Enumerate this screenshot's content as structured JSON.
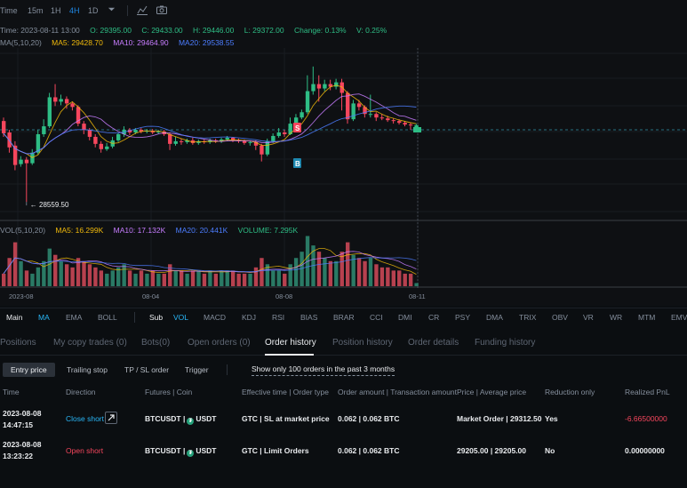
{
  "toolbar": {
    "items": [
      "Time",
      "15m",
      "1H",
      "4H",
      "1D"
    ],
    "active": "4H"
  },
  "info": {
    "time": "Time: 2023-08-11 13:00",
    "open": "O: 29395.00",
    "close": "C: 29433.00",
    "high": "H: 29446.00",
    "low": "L: 29372.00",
    "change": "Change: 0.13%",
    "volume": "V: 0.25%"
  },
  "ma": {
    "label": "MA(5,10,20)",
    "ma5": "MA5: 29428.70",
    "ma10": "MA10: 29464.90",
    "ma20": "MA20: 29538.55"
  },
  "chart_data": {
    "type": "candlestick",
    "low_label": "28559.50",
    "markers": [
      "S",
      "B"
    ],
    "x_ticks": [
      "2023-08",
      "08-04",
      "08-08",
      "08-11"
    ],
    "candles": [
      {
        "o": 29480,
        "c": 29340,
        "h": 29520,
        "l": 29300
      },
      {
        "o": 29350,
        "c": 29180,
        "h": 29380,
        "l": 29120
      },
      {
        "o": 29200,
        "c": 28980,
        "h": 29250,
        "l": 28920
      },
      {
        "o": 28990,
        "c": 29040,
        "h": 29080,
        "l": 28960
      },
      {
        "o": 29040,
        "c": 29000,
        "h": 29070,
        "l": 28560
      },
      {
        "o": 29000,
        "c": 29120,
        "h": 29160,
        "l": 28980
      },
      {
        "o": 29120,
        "c": 29330,
        "h": 29380,
        "l": 29100
      },
      {
        "o": 29330,
        "c": 29420,
        "h": 29500,
        "l": 29300
      },
      {
        "o": 29420,
        "c": 29750,
        "h": 29800,
        "l": 29400
      },
      {
        "o": 29750,
        "c": 29700,
        "h": 29900,
        "l": 29650
      },
      {
        "o": 29700,
        "c": 29730,
        "h": 29780,
        "l": 29660
      },
      {
        "o": 29730,
        "c": 29680,
        "h": 29760,
        "l": 29620
      },
      {
        "o": 29680,
        "c": 29640,
        "h": 29700,
        "l": 29600
      },
      {
        "o": 29640,
        "c": 29450,
        "h": 29660,
        "l": 29420
      },
      {
        "o": 29450,
        "c": 29380,
        "h": 29480,
        "l": 29330
      },
      {
        "o": 29380,
        "c": 29300,
        "h": 29400,
        "l": 29260
      },
      {
        "o": 29300,
        "c": 29220,
        "h": 29330,
        "l": 29180
      },
      {
        "o": 29220,
        "c": 29160,
        "h": 29250,
        "l": 29120
      },
      {
        "o": 29160,
        "c": 29190,
        "h": 29230,
        "l": 29140
      },
      {
        "o": 29190,
        "c": 29260,
        "h": 29300,
        "l": 29170
      },
      {
        "o": 29260,
        "c": 29330,
        "h": 29350,
        "l": 29240
      },
      {
        "o": 29330,
        "c": 29380,
        "h": 29420,
        "l": 29300
      },
      {
        "o": 29380,
        "c": 29350,
        "h": 29400,
        "l": 29320
      },
      {
        "o": 29350,
        "c": 29380,
        "h": 29400,
        "l": 29330
      },
      {
        "o": 29380,
        "c": 29360,
        "h": 29400,
        "l": 29340
      },
      {
        "o": 29360,
        "c": 29370,
        "h": 29390,
        "l": 29340
      },
      {
        "o": 29370,
        "c": 29350,
        "h": 29390,
        "l": 29330
      },
      {
        "o": 29350,
        "c": 29360,
        "h": 29380,
        "l": 29330
      },
      {
        "o": 29360,
        "c": 29330,
        "h": 29380,
        "l": 29310
      },
      {
        "o": 29330,
        "c": 29220,
        "h": 29350,
        "l": 29150
      },
      {
        "o": 29220,
        "c": 29250,
        "h": 29300,
        "l": 29200
      },
      {
        "o": 29250,
        "c": 29240,
        "h": 29280,
        "l": 29210
      },
      {
        "o": 29240,
        "c": 29260,
        "h": 29280,
        "l": 29220
      },
      {
        "o": 29260,
        "c": 29230,
        "h": 29290,
        "l": 29210
      },
      {
        "o": 29230,
        "c": 29250,
        "h": 29270,
        "l": 29210
      },
      {
        "o": 29250,
        "c": 29240,
        "h": 29270,
        "l": 29220
      },
      {
        "o": 29240,
        "c": 29260,
        "h": 29280,
        "l": 29220
      },
      {
        "o": 29260,
        "c": 29250,
        "h": 29280,
        "l": 29230
      },
      {
        "o": 29250,
        "c": 29270,
        "h": 29290,
        "l": 29230
      },
      {
        "o": 29270,
        "c": 29290,
        "h": 29310,
        "l": 29250
      },
      {
        "o": 29290,
        "c": 29260,
        "h": 29300,
        "l": 29240
      },
      {
        "o": 29260,
        "c": 29250,
        "h": 29280,
        "l": 29230
      },
      {
        "o": 29250,
        "c": 29230,
        "h": 29270,
        "l": 29210
      },
      {
        "o": 29230,
        "c": 29240,
        "h": 29260,
        "l": 29200
      },
      {
        "o": 29240,
        "c": 29200,
        "h": 29260,
        "l": 29150
      },
      {
        "o": 29200,
        "c": 29100,
        "h": 29220,
        "l": 29020
      },
      {
        "o": 29100,
        "c": 29250,
        "h": 29280,
        "l": 29080
      },
      {
        "o": 29250,
        "c": 29310,
        "h": 29340,
        "l": 29230
      },
      {
        "o": 29310,
        "c": 29350,
        "h": 29400,
        "l": 29290
      },
      {
        "o": 29350,
        "c": 29330,
        "h": 29380,
        "l": 29300
      },
      {
        "o": 29330,
        "c": 29450,
        "h": 29520,
        "l": 29320
      },
      {
        "o": 29450,
        "c": 29520,
        "h": 29560,
        "l": 29430
      },
      {
        "o": 29520,
        "c": 29580,
        "h": 29610,
        "l": 29500
      },
      {
        "o": 29580,
        "c": 29820,
        "h": 30000,
        "l": 29560
      },
      {
        "o": 29820,
        "c": 29900,
        "h": 30100,
        "l": 29780
      },
      {
        "o": 29900,
        "c": 29850,
        "h": 30000,
        "l": 29700
      },
      {
        "o": 29850,
        "c": 29900,
        "h": 29950,
        "l": 29820
      },
      {
        "o": 29900,
        "c": 29870,
        "h": 29950,
        "l": 29830
      },
      {
        "o": 29870,
        "c": 29920,
        "h": 29960,
        "l": 29840
      },
      {
        "o": 29920,
        "c": 29800,
        "h": 29960,
        "l": 29600
      },
      {
        "o": 29800,
        "c": 29500,
        "h": 29820,
        "l": 29450
      },
      {
        "o": 29500,
        "c": 29680,
        "h": 29720,
        "l": 29480
      },
      {
        "o": 29680,
        "c": 29640,
        "h": 29720,
        "l": 29600
      },
      {
        "o": 29640,
        "c": 29560,
        "h": 29660,
        "l": 29520
      },
      {
        "o": 29560,
        "c": 29560,
        "h": 29780,
        "l": 29520
      },
      {
        "o": 29560,
        "c": 29520,
        "h": 29580,
        "l": 29480
      },
      {
        "o": 29520,
        "c": 29510,
        "h": 29560,
        "l": 29490
      },
      {
        "o": 29510,
        "c": 29490,
        "h": 29540,
        "l": 29470
      },
      {
        "o": 29490,
        "c": 29480,
        "h": 29510,
        "l": 29450
      },
      {
        "o": 29480,
        "c": 29460,
        "h": 29500,
        "l": 29440
      },
      {
        "o": 29460,
        "c": 29440,
        "h": 29480,
        "l": 29420
      },
      {
        "o": 29440,
        "c": 29435,
        "h": 29460,
        "l": 29380
      },
      {
        "o": 29395,
        "c": 29433,
        "h": 29446,
        "l": 29372
      }
    ],
    "volumes": [
      4,
      9,
      14,
      8,
      5,
      4,
      6,
      8,
      12,
      10,
      8,
      7,
      6,
      9,
      8,
      7,
      6,
      5,
      4,
      5,
      6,
      7,
      5,
      4,
      5,
      4,
      5,
      4,
      4,
      7,
      5,
      5,
      4,
      5,
      5,
      4,
      5,
      4,
      5,
      5,
      5,
      4,
      4,
      4,
      6,
      9,
      7,
      5,
      5,
      4,
      7,
      9,
      11,
      16,
      13,
      11,
      9,
      8,
      8,
      11,
      14,
      10,
      9,
      8,
      9,
      7,
      6,
      6,
      5,
      5,
      4,
      4,
      1
    ]
  },
  "vol": {
    "label": "VOL(5,10,20)",
    "ma5": "MA5: 16.299K",
    "ma10": "MA10: 17.132K",
    "ma20": "MA20: 20.441K",
    "volume": "VOLUME: 7.295K"
  },
  "indicators": {
    "main_label": "Main",
    "main_items": [
      "MA",
      "EMA",
      "BOLL"
    ],
    "sub_label": "Sub",
    "sub_items": [
      "VOL",
      "MACD",
      "KDJ",
      "RSI",
      "BIAS",
      "BRAR",
      "CCI",
      "DMI",
      "CR",
      "PSY",
      "DMA",
      "TRIX",
      "OBV",
      "VR",
      "WR",
      "MTM",
      "EMV"
    ]
  },
  "tabs": [
    "Positions",
    "My copy trades (0)",
    "Bots(0)",
    "Open orders (0)",
    "Order history",
    "Position history",
    "Order details",
    "Funding history"
  ],
  "subtabs": [
    "Entry price",
    "Trailing stop",
    "TP / SL order",
    "Trigger"
  ],
  "notice": "Show only 100 orders in the past 3 months",
  "table": {
    "headers": [
      "Time",
      "Direction",
      "Futures | Coin",
      "Effective time | Order type",
      "Order amount | Transaction amount",
      "Price | Average price",
      "Reduction only",
      "Realized PnL"
    ],
    "rows": [
      {
        "date": "2023-08-08",
        "time": "14:47:15",
        "direction": "Close short",
        "futures": "BTCUSDT |",
        "coin": "USDT",
        "effective": "GTC | SL at market price",
        "amount": "0.062 | 0.062 BTC",
        "price": "Market Order | 29312.50",
        "reduction": "Yes",
        "pnl": "-6.66500000"
      },
      {
        "date": "2023-08-08",
        "time": "13:23:22",
        "direction": "Open short",
        "futures": "BTCUSDT |",
        "coin": "USDT",
        "effective": "GTC | Limit Orders",
        "amount": "0.062 | 0.062 BTC",
        "price": "29205.00 | 29205.00",
        "reduction": "No",
        "pnl": "0.00000000"
      }
    ]
  },
  "colors": {
    "up": "#2ebd85",
    "down": "#f6465d",
    "ma5": "#f0b90b",
    "ma10": "#c77dff",
    "ma20": "#4c7dff",
    "accent": "#1e88e5"
  }
}
